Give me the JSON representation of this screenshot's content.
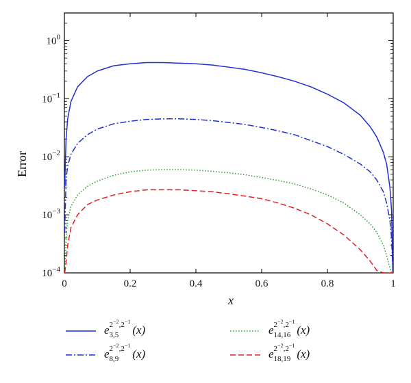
{
  "chart_data": {
    "type": "line",
    "xlabel": "x",
    "ylabel": "Error",
    "xlim": [
      0,
      1
    ],
    "ylim": [
      0.0001,
      3
    ],
    "yscale": "log",
    "grid": false,
    "legend_position": "below",
    "x_ticks": [
      "0",
      "0.2",
      "0.4",
      "0.6",
      "0.8",
      "1"
    ],
    "y_ticks": [
      {
        "base": "10",
        "exp": "0"
      },
      {
        "base": "10",
        "exp": "−1"
      },
      {
        "base": "10",
        "exp": "−2"
      },
      {
        "base": "10",
        "exp": "−3"
      },
      {
        "base": "10",
        "exp": "−4"
      }
    ],
    "x": [
      0.001,
      0.005,
      0.01,
      0.02,
      0.04,
      0.07,
      0.1,
      0.15,
      0.2,
      0.25,
      0.3,
      0.35,
      0.4,
      0.45,
      0.5,
      0.55,
      0.6,
      0.65,
      0.7,
      0.75,
      0.8,
      0.85,
      0.9,
      0.93,
      0.95,
      0.97,
      0.98,
      0.99,
      0.995,
      0.999
    ],
    "series": [
      {
        "name": "e_{3,5}^{2^{-2},2^{-1}}(x)",
        "label": {
          "e": "e",
          "sub": "3,5",
          "sup": "2",
          "sup_exp1": "−2",
          "sup_mid": ",2",
          "sup_exp2": "−1",
          "arg": "(x)"
        },
        "color": "#1f2fd0",
        "dash": "solid",
        "values": [
          0.003,
          0.02,
          0.045,
          0.09,
          0.16,
          0.24,
          0.3,
          0.37,
          0.4,
          0.42,
          0.42,
          0.41,
          0.4,
          0.38,
          0.35,
          0.32,
          0.28,
          0.24,
          0.2,
          0.16,
          0.12,
          0.085,
          0.052,
          0.033,
          0.022,
          0.012,
          0.0075,
          0.003,
          0.0012,
          0.0001
        ]
      },
      {
        "name": "e_{8,9}^{2^{-2},2^{-1}}(x)",
        "label": {
          "e": "e",
          "sub": "8,9",
          "sup": "2",
          "sup_exp1": "−2",
          "sup_mid": ",2",
          "sup_exp2": "−1",
          "arg": "(x)"
        },
        "color": "#1f2fd0",
        "dash": "dashdot",
        "values": [
          0.0005,
          0.004,
          0.007,
          0.011,
          0.017,
          0.024,
          0.03,
          0.037,
          0.041,
          0.044,
          0.045,
          0.045,
          0.044,
          0.042,
          0.039,
          0.036,
          0.032,
          0.028,
          0.024,
          0.019,
          0.015,
          0.011,
          0.0075,
          0.0055,
          0.004,
          0.0025,
          0.0016,
          0.0008,
          0.0004,
          0.0001
        ]
      },
      {
        "name": "e_{14,16}^{2^{-2},2^{-1}}(x)",
        "label": {
          "e": "e",
          "sub": "14,16",
          "sup": "2",
          "sup_exp1": "−2",
          "sup_mid": ",2",
          "sup_exp2": "−1",
          "arg": "(x)"
        },
        "color": "#2a9a2a",
        "dash": "dotted",
        "values": [
          0.0001,
          0.0004,
          0.0008,
          0.0014,
          0.0022,
          0.0031,
          0.0038,
          0.0048,
          0.0055,
          0.0059,
          0.006,
          0.006,
          0.0059,
          0.0056,
          0.0053,
          0.0049,
          0.0044,
          0.0039,
          0.0034,
          0.0028,
          0.0022,
          0.0016,
          0.001,
          0.0007,
          0.0005,
          0.0003,
          0.0002,
          0.00012,
          0.0001,
          0.0001
        ]
      },
      {
        "name": "e_{18,19}^{2^{-2},2^{-1}}(x)",
        "label": {
          "e": "e",
          "sub": "18,19",
          "sup": "2",
          "sup_exp1": "−2",
          "sup_mid": ",2",
          "sup_exp2": "−1",
          "arg": "(x)"
        },
        "color": "#e02020",
        "dash": "dashed",
        "values": [
          0.0001,
          0.00015,
          0.0003,
          0.0006,
          0.001,
          0.0015,
          0.0018,
          0.0022,
          0.0025,
          0.0027,
          0.0027,
          0.0027,
          0.0026,
          0.0025,
          0.0023,
          0.0021,
          0.0019,
          0.0016,
          0.0013,
          0.001,
          0.0007,
          0.00045,
          0.00025,
          0.00016,
          0.00011,
          0.0001,
          0.0001,
          0.0001,
          0.0001,
          0.0001
        ]
      }
    ]
  }
}
